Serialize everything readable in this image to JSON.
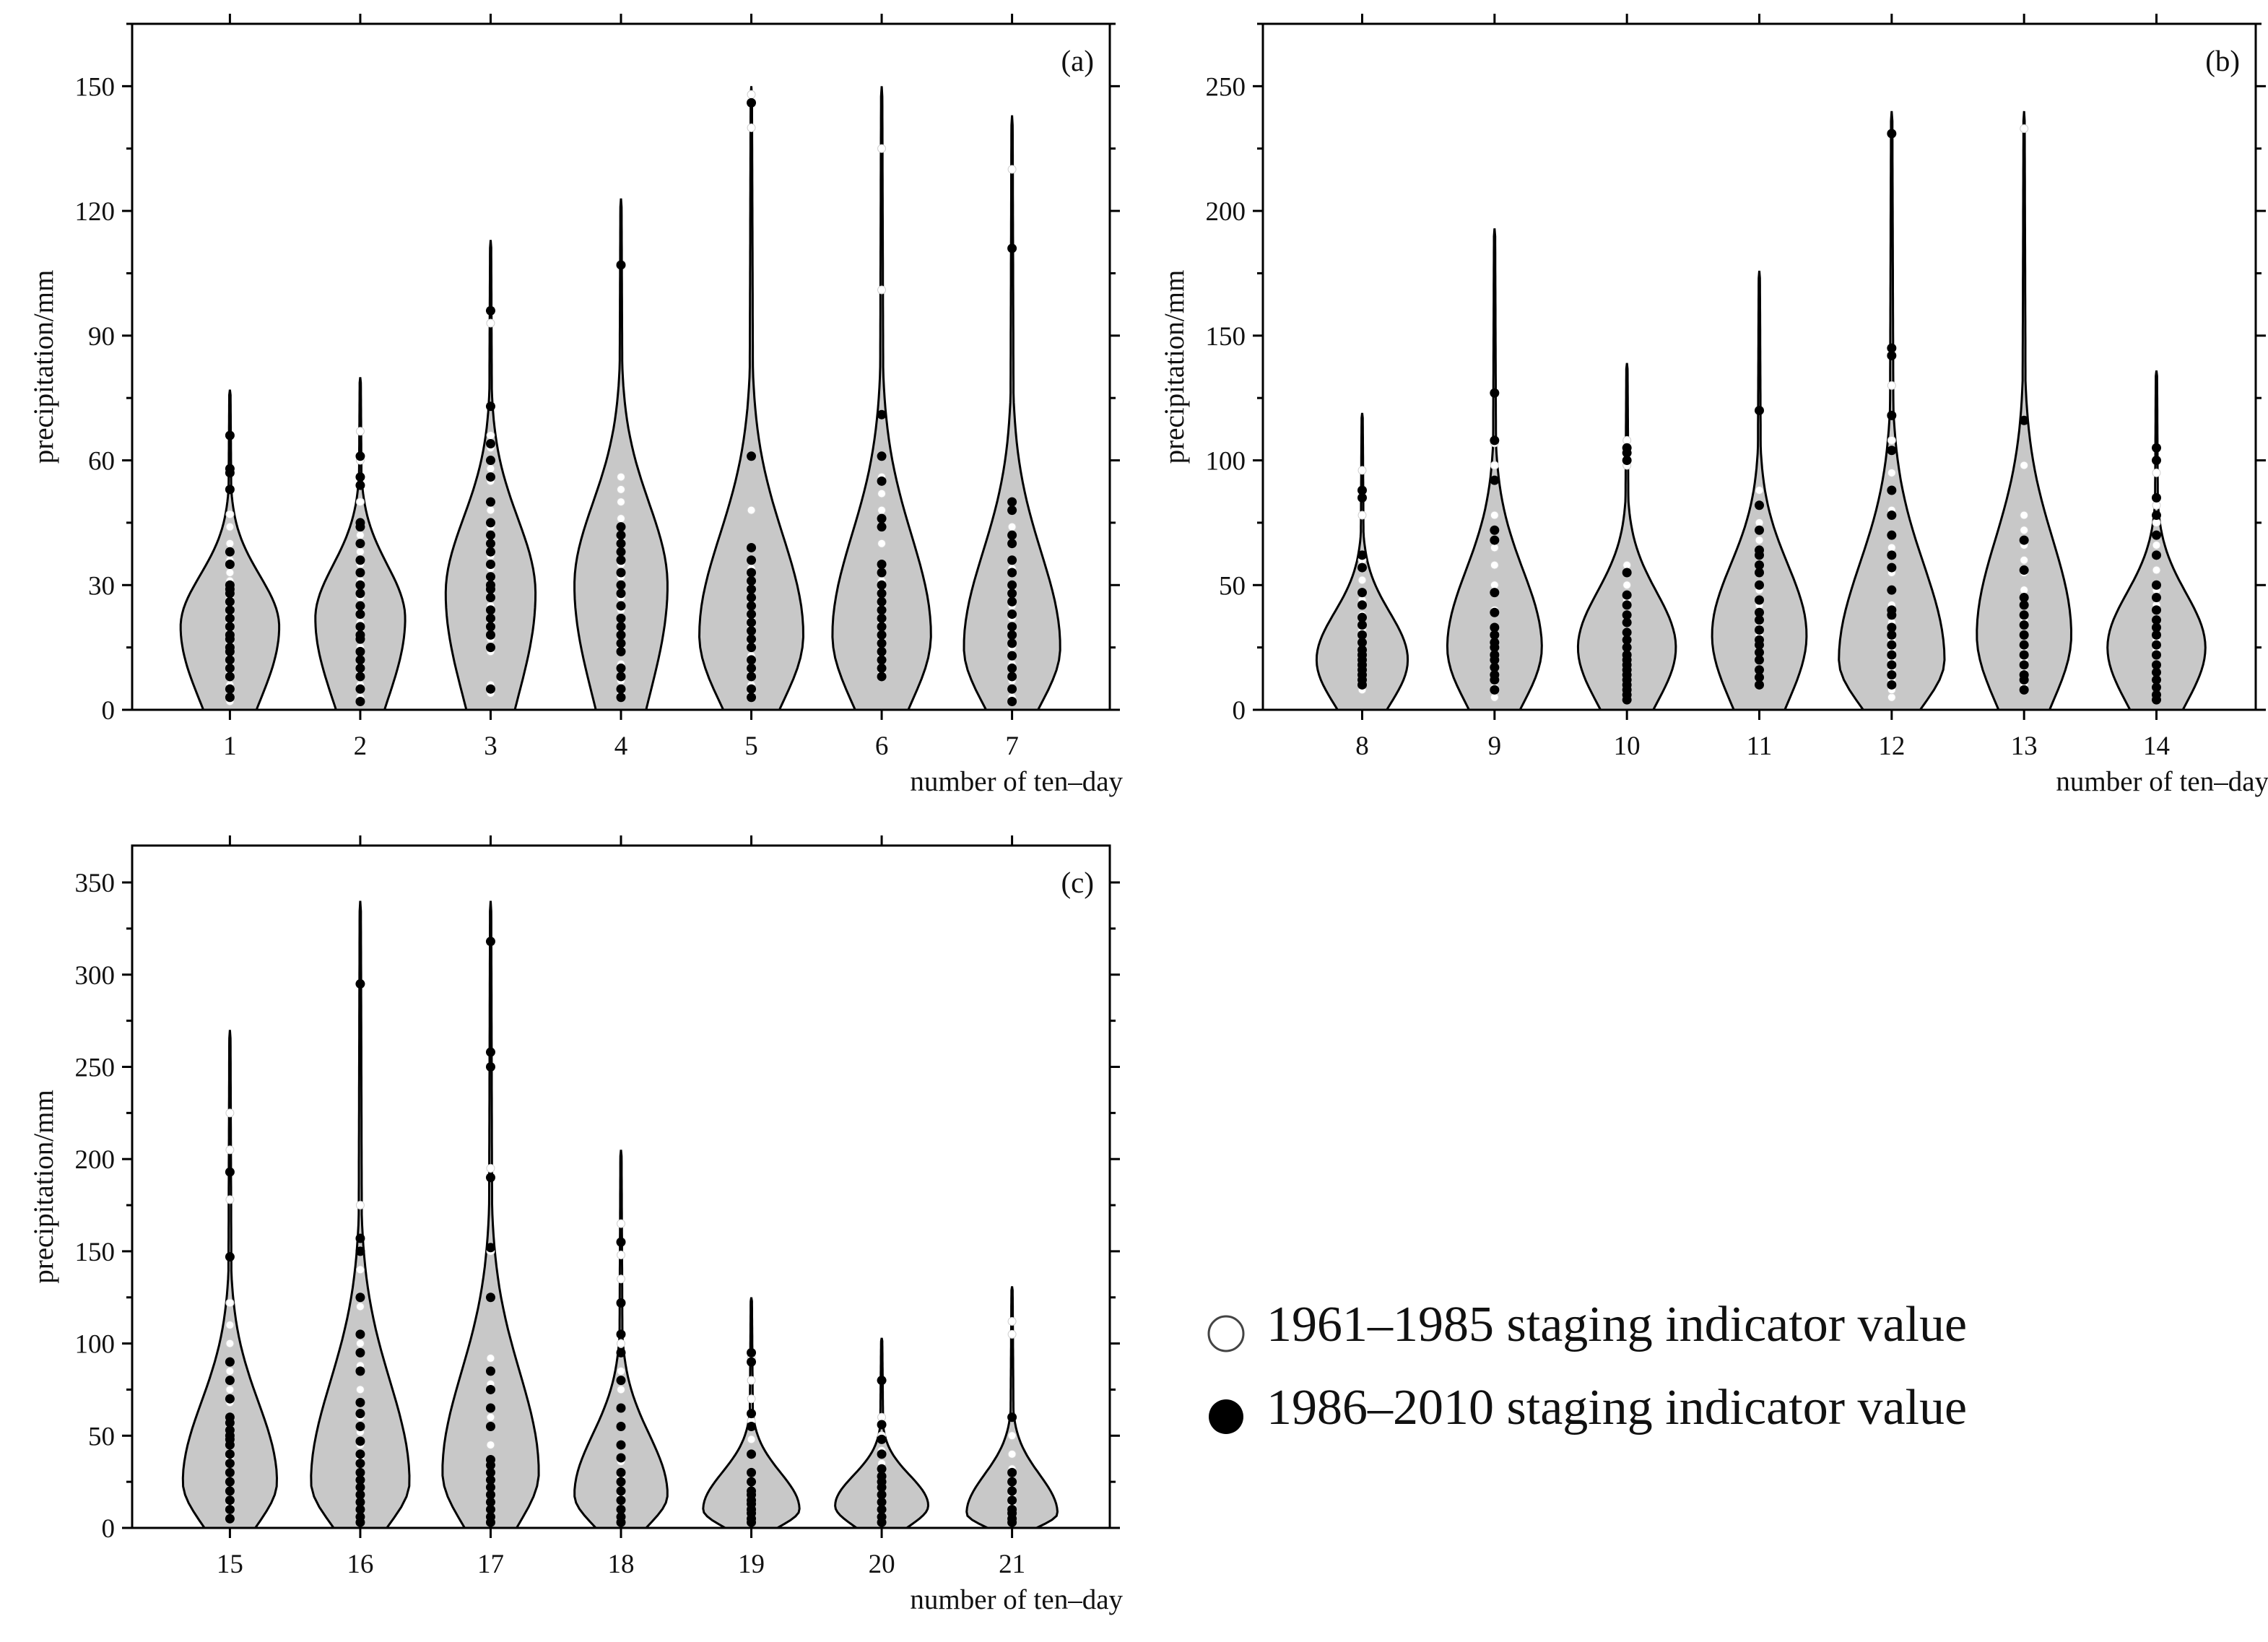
{
  "legend": {
    "old_label": "1961–1985 staging indicator value",
    "new_label": "1986–2010 staging indicator value"
  },
  "chart_data": [
    {
      "type": "violin",
      "panel": "(a)",
      "ylabel": "precipitation/mm",
      "xlabel": "number of ten–day",
      "ylim": [
        0,
        165
      ],
      "yticks": [
        0,
        30,
        60,
        90,
        120,
        150
      ],
      "categories": [
        "1",
        "2",
        "3",
        "4",
        "5",
        "6",
        "7"
      ],
      "violins": [
        {
          "min": 0,
          "max": 77,
          "mode": 20,
          "width": 0.9
        },
        {
          "min": 0,
          "max": 80,
          "mode": 22,
          "width": 0.82
        },
        {
          "min": 0,
          "max": 113,
          "mode": 28,
          "width": 0.82
        },
        {
          "min": 0,
          "max": 123,
          "mode": 30,
          "width": 0.85
        },
        {
          "min": 0,
          "max": 150,
          "mode": 18,
          "width": 0.95
        },
        {
          "min": 0,
          "max": 150,
          "mode": 18,
          "width": 0.9
        },
        {
          "min": 0,
          "max": 143,
          "mode": 15,
          "width": 0.88
        }
      ],
      "points_1986_2010": [
        [
          3,
          5,
          8,
          10,
          12,
          14,
          15,
          17,
          18,
          20,
          22,
          24,
          26,
          28,
          29,
          30,
          35,
          38,
          53,
          57,
          58,
          66
        ],
        [
          2,
          5,
          8,
          10,
          12,
          14,
          17,
          18,
          20,
          23,
          25,
          28,
          30,
          33,
          36,
          40,
          44,
          45,
          54,
          56,
          61
        ],
        [
          5,
          15,
          18,
          20,
          22,
          24,
          27,
          29,
          30,
          32,
          35,
          38,
          40,
          42,
          45,
          50,
          56,
          60,
          64,
          73,
          96
        ],
        [
          3,
          5,
          8,
          10,
          14,
          16,
          18,
          20,
          22,
          25,
          28,
          30,
          33,
          36,
          38,
          40,
          42,
          44,
          107
        ],
        [
          3,
          5,
          8,
          10,
          12,
          15,
          17,
          19,
          21,
          23,
          25,
          27,
          29,
          31,
          33,
          36,
          39,
          61,
          146
        ],
        [
          8,
          10,
          12,
          14,
          16,
          18,
          20,
          22,
          24,
          26,
          28,
          30,
          33,
          35,
          44,
          46,
          55,
          61,
          71
        ],
        [
          2,
          5,
          8,
          10,
          13,
          16,
          18,
          20,
          23,
          26,
          28,
          30,
          33,
          36,
          40,
          42,
          48,
          50,
          111
        ]
      ],
      "points_1961_1985": [
        [
          2,
          6,
          9,
          11,
          13,
          16,
          19,
          21,
          23,
          25,
          27,
          31,
          33,
          36,
          40,
          44,
          47
        ],
        [
          3,
          6,
          9,
          11,
          15,
          19,
          21,
          24,
          27,
          31,
          35,
          38,
          42,
          50,
          60,
          67
        ],
        [
          4,
          6,
          14,
          17,
          21,
          25,
          28,
          31,
          34,
          37,
          41,
          44,
          48,
          55,
          58,
          63,
          66,
          93
        ],
        [
          4,
          7,
          11,
          15,
          19,
          24,
          27,
          32,
          35,
          41,
          46,
          50,
          53,
          56
        ],
        [
          4,
          6,
          9,
          13,
          16,
          20,
          22,
          26,
          30,
          34,
          48,
          140,
          148
        ],
        [
          9,
          13,
          17,
          21,
          25,
          29,
          31,
          40,
          48,
          52,
          56,
          101,
          135
        ],
        [
          3,
          7,
          11,
          15,
          19,
          22,
          25,
          29,
          34,
          44,
          130
        ]
      ]
    },
    {
      "type": "violin",
      "panel": "(b)",
      "ylabel": "precipitation/mm",
      "xlabel": "number of ten–day",
      "ylim": [
        0,
        275
      ],
      "yticks": [
        0,
        50,
        100,
        150,
        200,
        250
      ],
      "categories": [
        "8",
        "9",
        "10",
        "11",
        "12",
        "13",
        "14"
      ],
      "violins": [
        {
          "min": 0,
          "max": 119,
          "mode": 20,
          "width": 0.82
        },
        {
          "min": 0,
          "max": 193,
          "mode": 25,
          "width": 0.85
        },
        {
          "min": 0,
          "max": 139,
          "mode": 25,
          "width": 0.88
        },
        {
          "min": 0,
          "max": 176,
          "mode": 30,
          "width": 0.85
        },
        {
          "min": 0,
          "max": 240,
          "mode": 20,
          "width": 0.95
        },
        {
          "min": 0,
          "max": 240,
          "mode": 30,
          "width": 0.85
        },
        {
          "min": 0,
          "max": 136,
          "mode": 25,
          "width": 0.88
        }
      ],
      "points_1986_2010": [
        [
          10,
          12,
          14,
          16,
          18,
          20,
          22,
          24,
          27,
          30,
          34,
          37,
          42,
          47,
          57,
          62,
          85,
          88
        ],
        [
          8,
          12,
          14,
          17,
          20,
          22,
          25,
          27,
          30,
          33,
          39,
          47,
          68,
          72,
          92,
          108,
          127
        ],
        [
          4,
          6,
          8,
          10,
          12,
          14,
          16,
          18,
          20,
          22,
          25,
          28,
          31,
          35,
          38,
          42,
          46,
          55,
          100,
          103,
          105
        ],
        [
          10,
          13,
          16,
          20,
          23,
          26,
          28,
          32,
          36,
          39,
          44,
          50,
          55,
          58,
          62,
          64,
          72,
          82,
          120
        ],
        [
          10,
          14,
          18,
          22,
          26,
          30,
          33,
          38,
          40,
          48,
          57,
          62,
          70,
          78,
          88,
          104,
          118,
          142,
          145,
          231
        ],
        [
          8,
          12,
          14,
          18,
          22,
          26,
          30,
          34,
          38,
          42,
          45,
          56,
          68,
          116
        ],
        [
          4,
          6,
          9,
          12,
          15,
          18,
          22,
          26,
          30,
          33,
          36,
          40,
          45,
          50,
          62,
          70,
          78,
          85,
          100,
          105
        ]
      ],
      "points_1961_1985": [
        [
          8,
          11,
          15,
          19,
          23,
          28,
          32,
          38,
          44,
          52,
          60,
          78,
          96
        ],
        [
          5,
          9,
          13,
          17,
          21,
          26,
          31,
          40,
          50,
          58,
          65,
          78,
          98,
          107
        ],
        [
          7,
          11,
          15,
          19,
          24,
          30,
          36,
          44,
          50,
          58,
          98,
          108
        ],
        [
          12,
          16,
          20,
          25,
          30,
          35,
          42,
          48,
          55,
          62,
          68,
          75,
          88
        ],
        [
          5,
          8,
          12,
          16,
          20,
          24,
          28,
          35,
          42,
          55,
          65,
          80,
          95,
          108,
          130
        ],
        [
          10,
          15,
          20,
          25,
          30,
          36,
          42,
          48,
          55,
          60,
          66,
          72,
          78,
          98,
          233
        ],
        [
          6,
          10,
          14,
          18,
          24,
          28,
          34,
          42,
          48,
          56,
          66,
          75,
          82,
          95
        ]
      ]
    },
    {
      "type": "violin",
      "panel": "(c)",
      "ylabel": "precipitation/mm",
      "xlabel": "number of ten–day",
      "ylim": [
        0,
        370
      ],
      "yticks": [
        0,
        50,
        100,
        150,
        200,
        250,
        300,
        350
      ],
      "categories": [
        "15",
        "16",
        "17",
        "18",
        "19",
        "20",
        "21"
      ],
      "violins": [
        {
          "min": 0,
          "max": 270,
          "mode": 25,
          "width": 0.86
        },
        {
          "min": 0,
          "max": 340,
          "mode": 25,
          "width": 0.9
        },
        {
          "min": 0,
          "max": 340,
          "mode": 30,
          "width": 0.88
        },
        {
          "min": 0,
          "max": 205,
          "mode": 18,
          "width": 0.85
        },
        {
          "min": 0,
          "max": 125,
          "mode": 10,
          "width": 0.88
        },
        {
          "min": 0,
          "max": 103,
          "mode": 12,
          "width": 0.85
        },
        {
          "min": 0,
          "max": 131,
          "mode": 8,
          "width": 0.83
        }
      ],
      "points_1986_2010": [
        [
          5,
          10,
          15,
          20,
          25,
          30,
          35,
          40,
          45,
          48,
          50,
          53,
          57,
          60,
          70,
          80,
          90,
          147,
          193
        ],
        [
          3,
          6,
          10,
          14,
          18,
          22,
          26,
          30,
          35,
          40,
          47,
          55,
          62,
          68,
          85,
          95,
          105,
          125,
          150,
          157,
          295
        ],
        [
          3,
          6,
          10,
          14,
          18,
          22,
          26,
          30,
          34,
          37,
          55,
          65,
          75,
          85,
          125,
          152,
          190,
          250,
          258,
          318
        ],
        [
          3,
          6,
          10,
          15,
          20,
          25,
          30,
          38,
          45,
          55,
          65,
          80,
          95,
          105,
          122,
          155
        ],
        [
          3,
          5,
          8,
          10,
          13,
          15,
          18,
          20,
          25,
          30,
          40,
          55,
          62,
          90,
          95
        ],
        [
          3,
          6,
          10,
          14,
          18,
          22,
          25,
          28,
          32,
          40,
          48,
          56,
          80
        ],
        [
          3,
          5,
          8,
          10,
          15,
          20,
          25,
          30,
          60
        ]
      ],
      "points_1961_1985": [
        [
          5,
          12,
          20,
          30,
          38,
          45,
          55,
          68,
          75,
          85,
          100,
          110,
          122,
          178,
          205,
          225
        ],
        [
          5,
          10,
          20,
          28,
          38,
          45,
          52,
          60,
          75,
          88,
          100,
          120,
          140,
          175
        ],
        [
          5,
          12,
          20,
          28,
          36,
          45,
          60,
          78,
          92,
          150,
          195
        ],
        [
          4,
          10,
          18,
          28,
          36,
          45,
          55,
          65,
          75,
          85,
          100,
          135,
          148,
          165
        ],
        [
          3,
          7,
          12,
          18,
          24,
          30,
          40,
          48,
          58,
          70,
          80,
          92
        ],
        [
          4,
          8,
          12,
          16,
          22,
          28,
          35,
          42,
          50,
          60,
          80
        ],
        [
          3,
          7,
          12,
          18,
          24,
          32,
          40,
          50,
          105,
          112
        ]
      ]
    }
  ]
}
